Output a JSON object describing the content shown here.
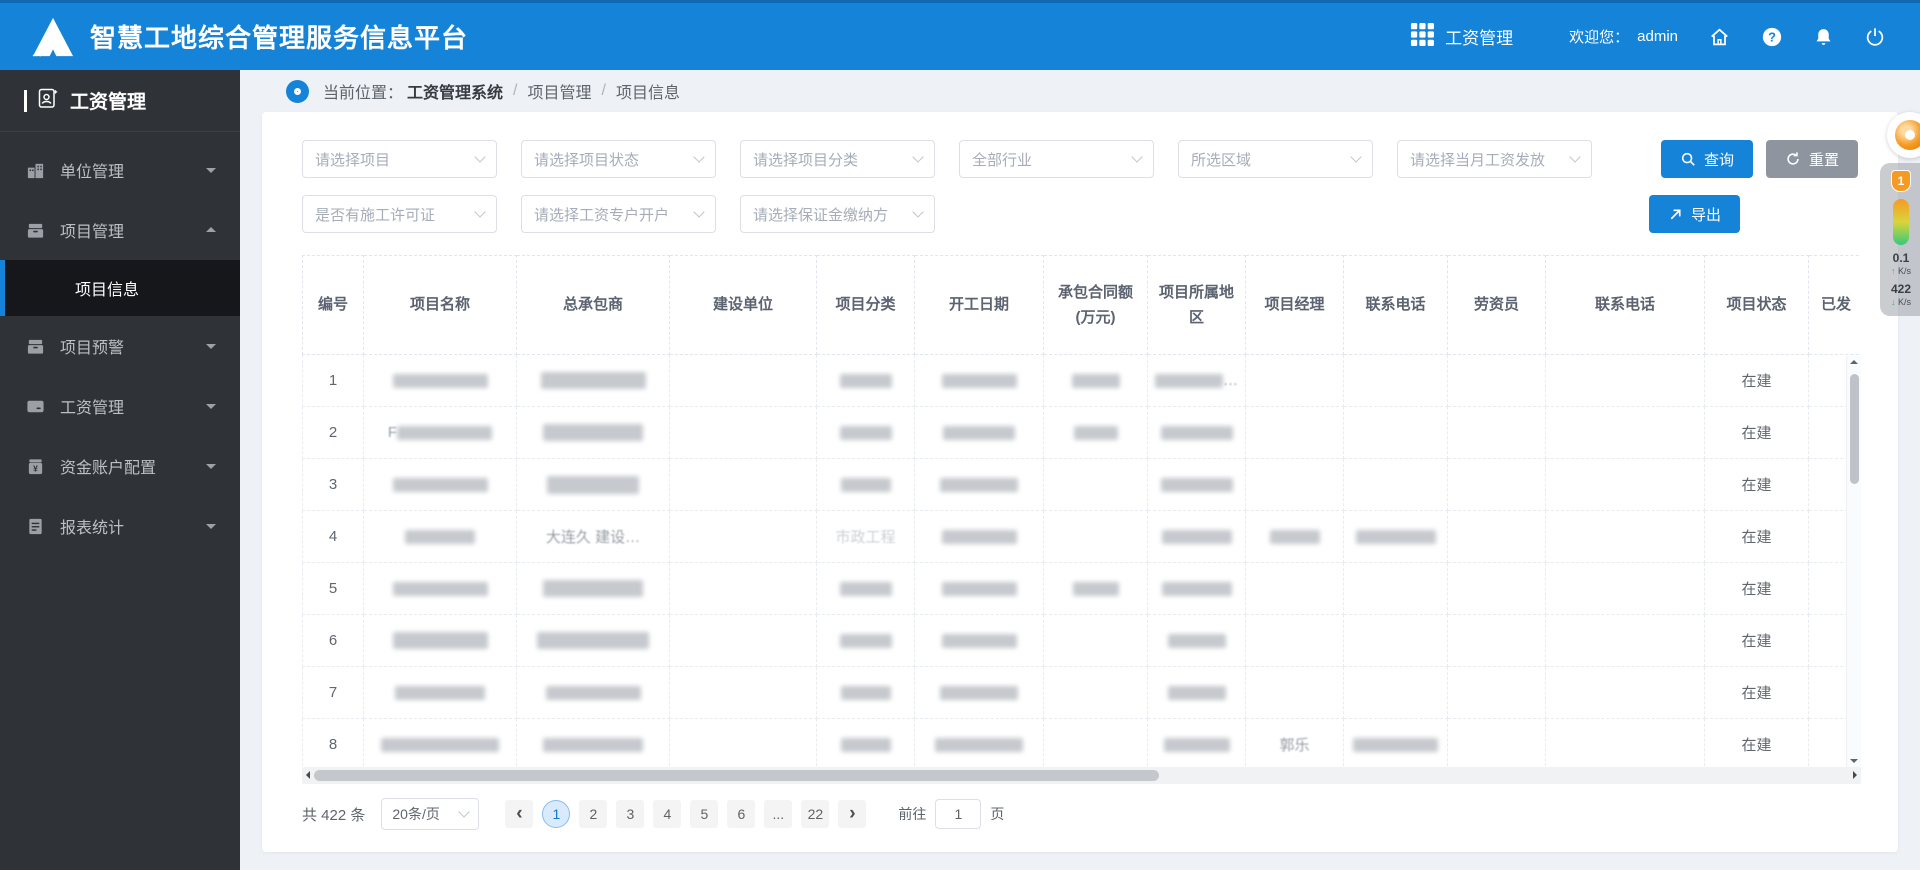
{
  "colors": {
    "accent": "#1583d7",
    "sidebar_bg": "#2f3337",
    "reset_gray": "#8e959e"
  },
  "topbar": {
    "title": "智慧工地综合管理服务信息平台",
    "app_label": "工资管理",
    "welcome_label": "欢迎您：",
    "username": "admin"
  },
  "sidebar": {
    "title": "工资管理",
    "items": [
      {
        "label": "单位管理"
      },
      {
        "label": "项目管理",
        "children": [
          {
            "label": "项目信息",
            "active": true
          }
        ]
      },
      {
        "label": "项目预警"
      },
      {
        "label": "工资管理"
      },
      {
        "label": "资金账户配置"
      },
      {
        "label": "报表统计"
      }
    ]
  },
  "breadcrumb": {
    "label": "当前位置：",
    "root": "工资管理系统",
    "sep": "/",
    "level1": "项目管理",
    "level2": "项目信息"
  },
  "filters": {
    "row1": [
      "请选择项目",
      "请选择项目状态",
      "请选择项目分类",
      "全部行业",
      "所选区域",
      "请选择当月工资发放"
    ],
    "row2": [
      "是否有施工许可证",
      "请选择工资专户开户",
      "请选择保证金缴纳方"
    ],
    "search_label": "查询",
    "reset_label": "重置",
    "export_label": "导出"
  },
  "table": {
    "col_keys": [
      "num",
      "name",
      "contractor",
      "builder",
      "category",
      "start_date",
      "amount",
      "region",
      "manager",
      "phone",
      "labor",
      "phone2",
      "status",
      "extra"
    ],
    "columns": [
      "编号",
      "项目名称",
      "总承包商",
      "建设单位",
      "项目分类",
      "开工日期",
      "承包合同额(万元)",
      "项目所属地区",
      "项目经理",
      "联系电话",
      "劳资员",
      "联系电话",
      "项目状态",
      "已发"
    ],
    "rows": [
      {
        "num": "1",
        "status": "在建",
        "cells": {
          "name": {
            "b": 95
          },
          "contractor": {
            "b": 105,
            "h": 17
          },
          "category": {
            "b": 52
          },
          "start_date": {
            "b": 75
          },
          "amount": {
            "b": 48
          },
          "region": {
            "b": 68,
            "suffix": "…"
          }
        }
      },
      {
        "num": "2",
        "status": "在建",
        "cells": {
          "name": {
            "b": 95,
            "prefix": "F"
          },
          "contractor": {
            "b": 100,
            "h": 17
          },
          "category": {
            "b": 52
          },
          "start_date": {
            "b": 72
          },
          "amount": {
            "b": 44
          },
          "region": {
            "b": 72
          }
        }
      },
      {
        "num": "3",
        "status": "在建",
        "cells": {
          "name": {
            "b": 95
          },
          "contractor": {
            "b": 92,
            "h": 18
          },
          "category": {
            "b": 50
          },
          "start_date": {
            "b": 78
          },
          "region": {
            "b": 72
          }
        }
      },
      {
        "num": "4",
        "status": "在建",
        "cells": {
          "name": {
            "b": 70
          },
          "contractor": {
            "text": "大连久 建设…"
          },
          "category": {
            "text": "市政工程",
            "faint": true
          },
          "start_date": {
            "b": 75
          },
          "region": {
            "b": 70
          },
          "manager": {
            "b": 50
          },
          "phone": {
            "b": 80
          }
        }
      },
      {
        "num": "5",
        "status": "在建",
        "cells": {
          "name": {
            "b": 95
          },
          "contractor": {
            "b": 100,
            "h": 17
          },
          "category": {
            "b": 52
          },
          "start_date": {
            "b": 75
          },
          "amount": {
            "b": 46
          },
          "region": {
            "b": 70
          }
        }
      },
      {
        "num": "6",
        "status": "在建",
        "cells": {
          "name": {
            "b": 95,
            "h": 17
          },
          "contractor": {
            "b": 112,
            "h": 17
          },
          "category": {
            "b": 52
          },
          "start_date": {
            "b": 75
          },
          "region": {
            "b": 58
          }
        }
      },
      {
        "num": "7",
        "status": "在建",
        "cells": {
          "name": {
            "b": 90
          },
          "contractor": {
            "b": 95
          },
          "category": {
            "b": 50
          },
          "start_date": {
            "b": 78
          },
          "region": {
            "b": 58
          }
        }
      },
      {
        "num": "8",
        "status": "在建",
        "cells": {
          "name": {
            "b": 118
          },
          "contractor": {
            "b": 100
          },
          "category": {
            "b": 50
          },
          "start_date": {
            "b": 88
          },
          "region": {
            "b": 66
          },
          "manager": {
            "text": "郭乐"
          },
          "phone": {
            "b": 85
          }
        }
      }
    ]
  },
  "pagination": {
    "total": "共 422 条",
    "page_size": "20条/页",
    "prev": "‹",
    "next": "›",
    "pages": [
      "1",
      "2",
      "3",
      "4",
      "5",
      "6",
      "...",
      "22"
    ],
    "active_page": "1",
    "goto_label": "前往",
    "goto_value": "1",
    "goto_suffix": "页"
  },
  "net_widget": {
    "badge": "1",
    "up_arrow": "↑",
    "up_value": "0.1",
    "up_unit": "K/s",
    "down_arrow": "↓",
    "down_value": "422",
    "down_unit": "K/s"
  }
}
